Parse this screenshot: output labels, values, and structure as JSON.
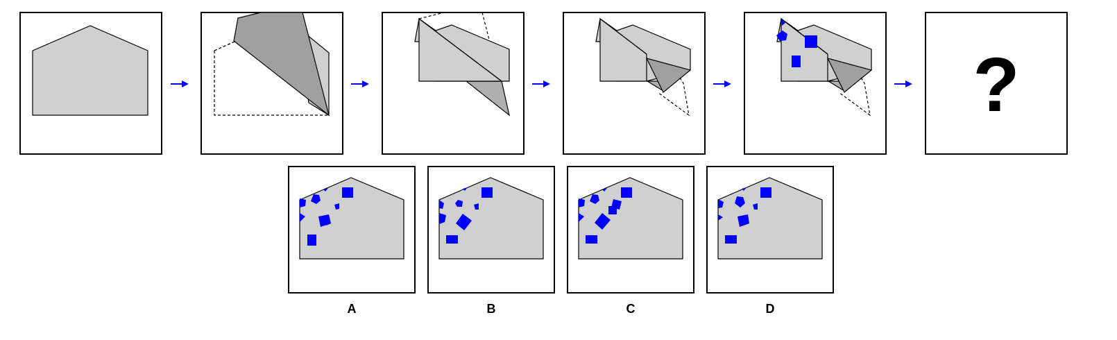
{
  "question_mark": "?",
  "options": [
    {
      "label": "A"
    },
    {
      "label": "B"
    },
    {
      "label": "C"
    },
    {
      "label": "D"
    }
  ],
  "colors": {
    "paper": "#d0d0d0",
    "folded_flap": "#a0a0a0",
    "punch": "#0000ff",
    "arrow": "#0000ff"
  }
}
